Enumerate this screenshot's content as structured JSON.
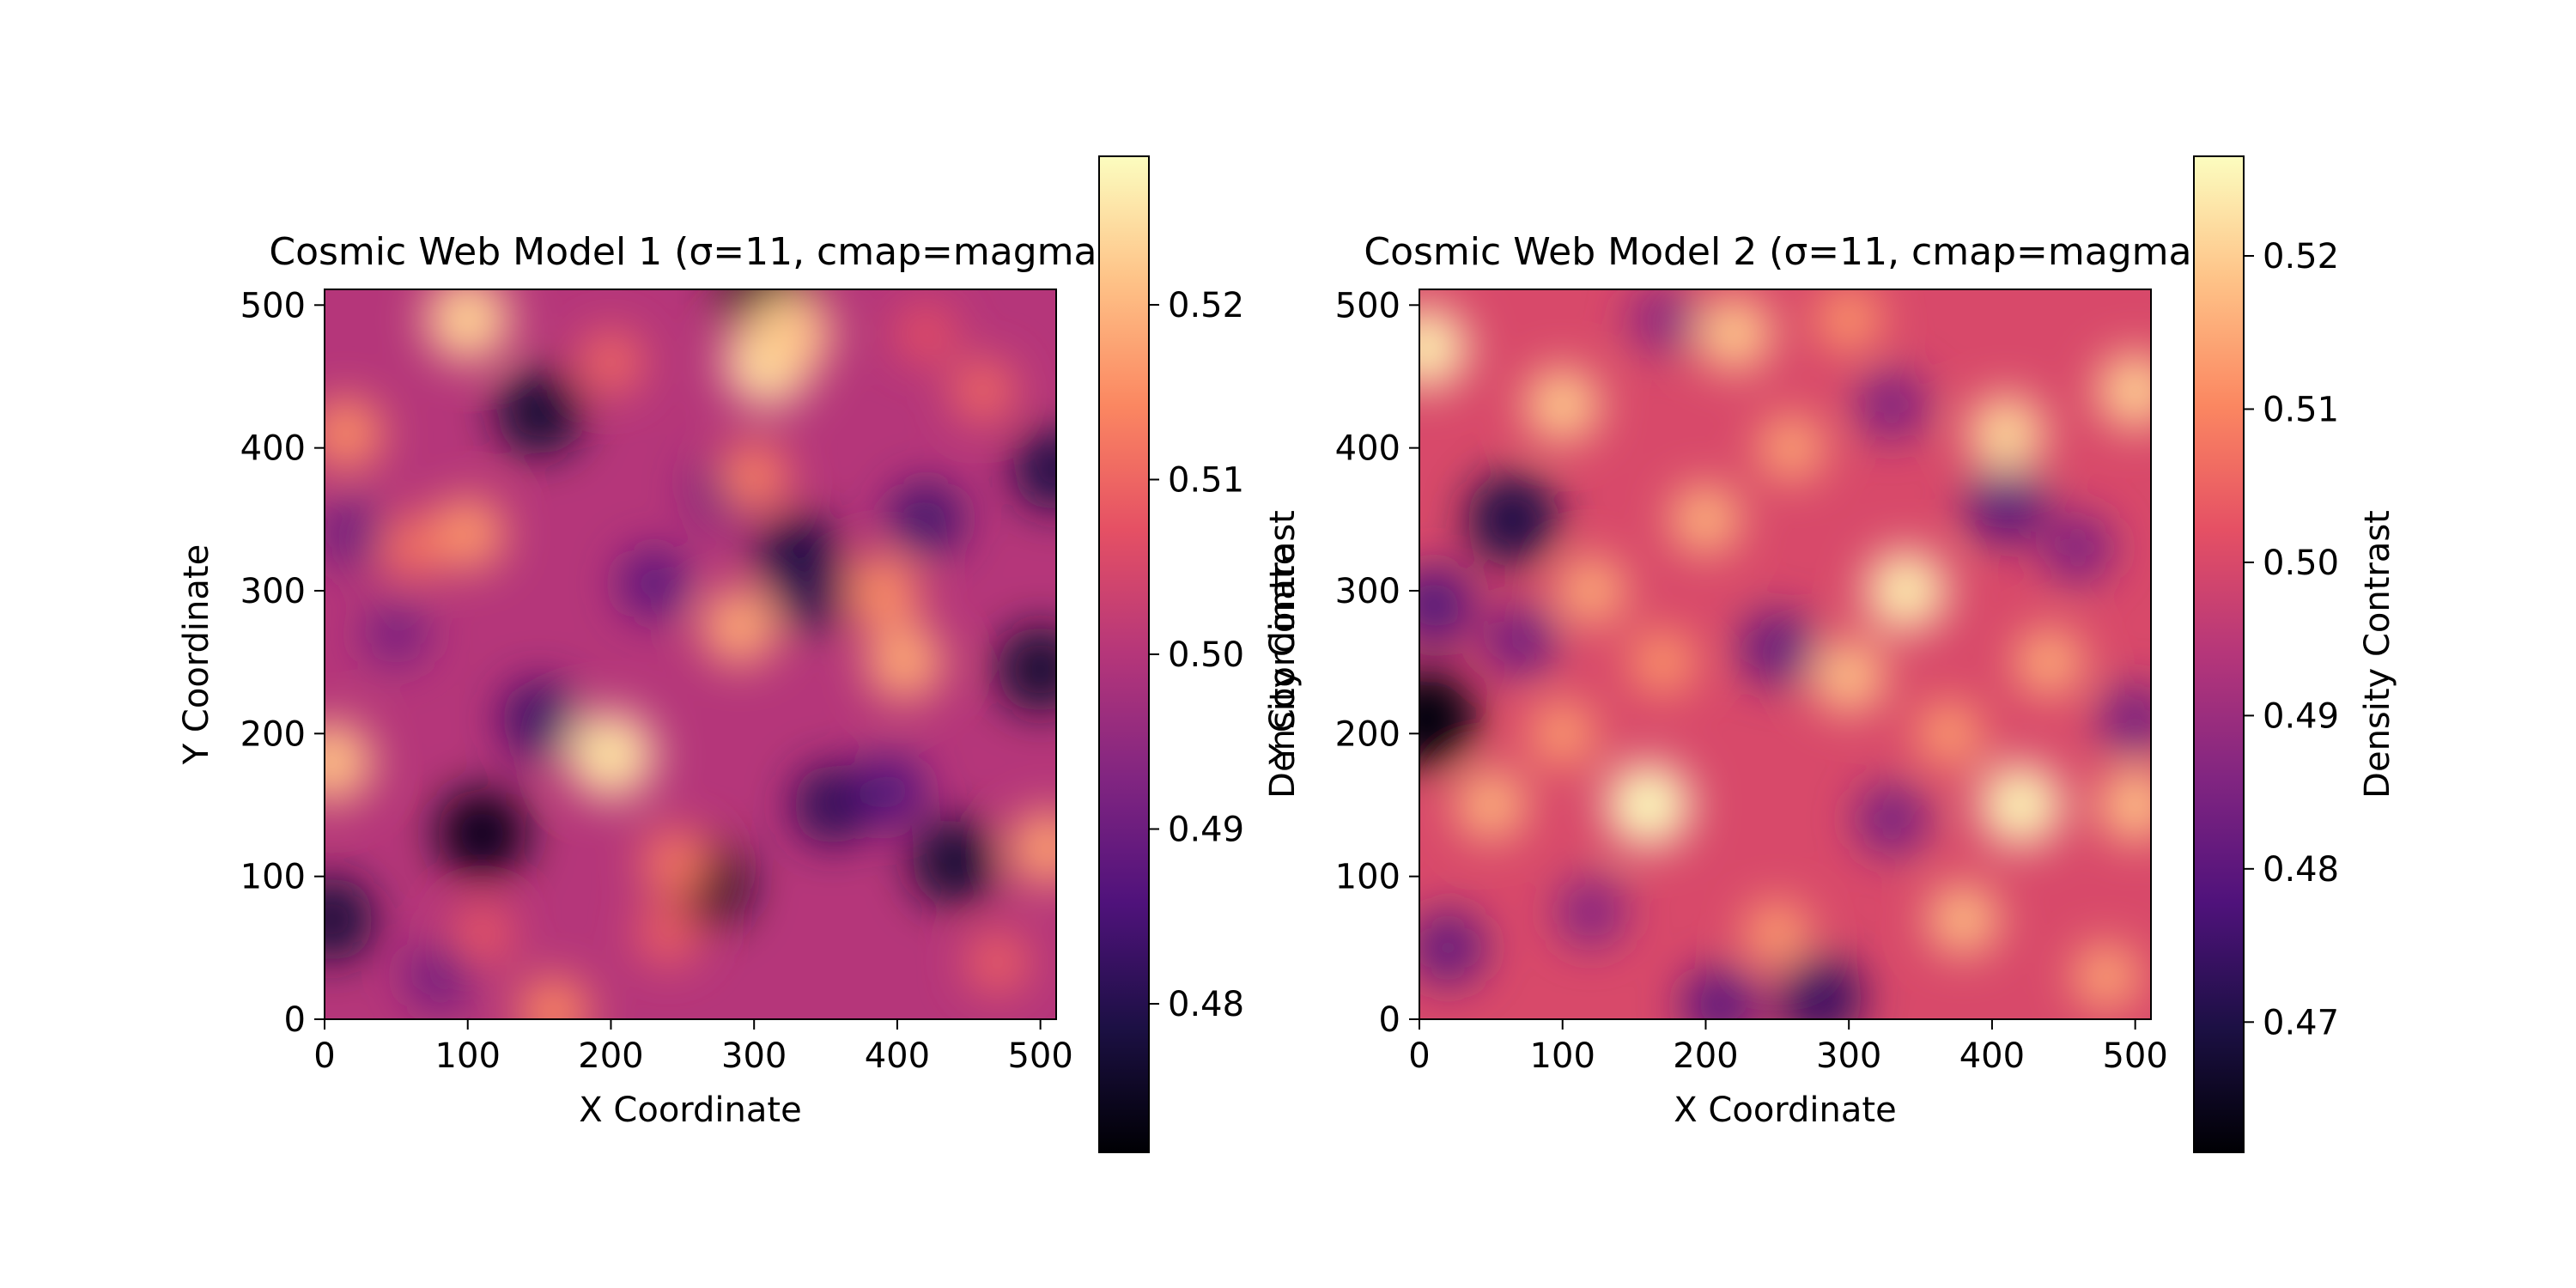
{
  "chart_data": [
    {
      "type": "heatmap",
      "title": "Cosmic Web Model 1 (σ=11, cmap=magma)",
      "xlabel": "X Coordinate",
      "ylabel": "Y Coordinate",
      "xlim": [
        0,
        511
      ],
      "ylim": [
        0,
        511
      ],
      "xticks": [
        0,
        100,
        200,
        300,
        400,
        500
      ],
      "yticks": [
        0,
        100,
        200,
        300,
        400,
        500
      ],
      "colormap": "magma",
      "colorbar": {
        "label": "Density Contrast",
        "range": [
          0.4715,
          0.5285
        ],
        "ticks": [
          0.48,
          0.49,
          0.5,
          0.51,
          0.52
        ],
        "tick_labels": [
          "0.48",
          "0.49",
          "0.50",
          "0.51",
          "0.52"
        ]
      },
      "features": [
        {
          "x": 310,
          "y": 505,
          "v": 0.472
        },
        {
          "x": 150,
          "y": 425,
          "v": 0.477
        },
        {
          "x": 330,
          "y": 325,
          "v": 0.478
        },
        {
          "x": 340,
          "y": 300,
          "v": 0.48
        },
        {
          "x": 510,
          "y": 385,
          "v": 0.479
        },
        {
          "x": 500,
          "y": 245,
          "v": 0.477
        },
        {
          "x": 110,
          "y": 130,
          "v": 0.474
        },
        {
          "x": 265,
          "y": 95,
          "v": 0.475
        },
        {
          "x": 440,
          "y": 110,
          "v": 0.477
        },
        {
          "x": 5,
          "y": 70,
          "v": 0.478
        },
        {
          "x": 355,
          "y": 150,
          "v": 0.481
        },
        {
          "x": 150,
          "y": 210,
          "v": 0.483
        },
        {
          "x": 420,
          "y": 350,
          "v": 0.484
        },
        {
          "x": 230,
          "y": 305,
          "v": 0.487
        },
        {
          "x": 20,
          "y": 340,
          "v": 0.489
        },
        {
          "x": 280,
          "y": 370,
          "v": 0.488
        },
        {
          "x": 395,
          "y": 160,
          "v": 0.486
        },
        {
          "x": 80,
          "y": 30,
          "v": 0.49
        },
        {
          "x": 50,
          "y": 270,
          "v": 0.491
        },
        {
          "x": 100,
          "y": 490,
          "v": 0.523
        },
        {
          "x": 310,
          "y": 460,
          "v": 0.525
        },
        {
          "x": 325,
          "y": 480,
          "v": 0.522
        },
        {
          "x": 5,
          "y": 180,
          "v": 0.521
        },
        {
          "x": 200,
          "y": 185,
          "v": 0.525
        },
        {
          "x": 290,
          "y": 275,
          "v": 0.518
        },
        {
          "x": 405,
          "y": 250,
          "v": 0.518
        },
        {
          "x": 390,
          "y": 300,
          "v": 0.515
        },
        {
          "x": 505,
          "y": 120,
          "v": 0.517
        },
        {
          "x": 100,
          "y": 340,
          "v": 0.516
        },
        {
          "x": 15,
          "y": 410,
          "v": 0.515
        },
        {
          "x": 300,
          "y": 380,
          "v": 0.513
        },
        {
          "x": 160,
          "y": 5,
          "v": 0.514
        },
        {
          "x": 245,
          "y": 110,
          "v": 0.512
        },
        {
          "x": 60,
          "y": 330,
          "v": 0.511
        },
        {
          "x": 200,
          "y": 460,
          "v": 0.51
        },
        {
          "x": 240,
          "y": 60,
          "v": 0.509
        },
        {
          "x": 470,
          "y": 40,
          "v": 0.509
        },
        {
          "x": 460,
          "y": 440,
          "v": 0.51
        },
        {
          "x": 110,
          "y": 60,
          "v": 0.508
        },
        {
          "x": 420,
          "y": 480,
          "v": 0.507
        }
      ]
    },
    {
      "type": "heatmap",
      "title": "Cosmic Web Model 2 (σ=11, cmap=magma)",
      "xlabel": "X Coordinate",
      "ylabel": "Y Coordinate",
      "xlim": [
        0,
        511
      ],
      "ylim": [
        0,
        511
      ],
      "xticks": [
        0,
        100,
        200,
        300,
        400,
        500
      ],
      "yticks": [
        0,
        100,
        200,
        300,
        400,
        500
      ],
      "colormap": "magma",
      "colorbar": {
        "label": "Density Contrast",
        "range": [
          0.4615,
          0.5265
        ],
        "ticks": [
          0.47,
          0.48,
          0.49,
          0.5,
          0.51,
          0.52
        ],
        "tick_labels": [
          "0.47",
          "0.48",
          "0.49",
          "0.50",
          "0.51",
          "0.52"
        ]
      },
      "features": [
        {
          "x": 5,
          "y": 210,
          "v": 0.463
        },
        {
          "x": 65,
          "y": 350,
          "v": 0.47
        },
        {
          "x": 280,
          "y": 15,
          "v": 0.474
        },
        {
          "x": 410,
          "y": 360,
          "v": 0.479
        },
        {
          "x": 210,
          "y": 10,
          "v": 0.48
        },
        {
          "x": 10,
          "y": 290,
          "v": 0.478
        },
        {
          "x": 250,
          "y": 260,
          "v": 0.481
        },
        {
          "x": 20,
          "y": 50,
          "v": 0.481
        },
        {
          "x": 70,
          "y": 265,
          "v": 0.483
        },
        {
          "x": 330,
          "y": 140,
          "v": 0.484
        },
        {
          "x": 330,
          "y": 430,
          "v": 0.485
        },
        {
          "x": 460,
          "y": 330,
          "v": 0.485
        },
        {
          "x": 120,
          "y": 75,
          "v": 0.486
        },
        {
          "x": 500,
          "y": 210,
          "v": 0.484
        },
        {
          "x": 170,
          "y": 490,
          "v": 0.487
        },
        {
          "x": 5,
          "y": 470,
          "v": 0.524
        },
        {
          "x": 160,
          "y": 150,
          "v": 0.526
        },
        {
          "x": 340,
          "y": 300,
          "v": 0.524
        },
        {
          "x": 420,
          "y": 150,
          "v": 0.525
        },
        {
          "x": 410,
          "y": 410,
          "v": 0.521
        },
        {
          "x": 500,
          "y": 440,
          "v": 0.52
        },
        {
          "x": 220,
          "y": 480,
          "v": 0.519
        },
        {
          "x": 100,
          "y": 430,
          "v": 0.519
        },
        {
          "x": 300,
          "y": 240,
          "v": 0.518
        },
        {
          "x": 500,
          "y": 150,
          "v": 0.518
        },
        {
          "x": 380,
          "y": 70,
          "v": 0.517
        },
        {
          "x": 50,
          "y": 150,
          "v": 0.516
        },
        {
          "x": 120,
          "y": 300,
          "v": 0.515
        },
        {
          "x": 200,
          "y": 350,
          "v": 0.516
        },
        {
          "x": 260,
          "y": 400,
          "v": 0.514
        },
        {
          "x": 440,
          "y": 250,
          "v": 0.515
        },
        {
          "x": 480,
          "y": 30,
          "v": 0.514
        },
        {
          "x": 250,
          "y": 60,
          "v": 0.513
        },
        {
          "x": 100,
          "y": 200,
          "v": 0.513
        },
        {
          "x": 370,
          "y": 200,
          "v": 0.513
        },
        {
          "x": 170,
          "y": 250,
          "v": 0.512
        },
        {
          "x": 300,
          "y": 490,
          "v": 0.512
        }
      ]
    }
  ]
}
